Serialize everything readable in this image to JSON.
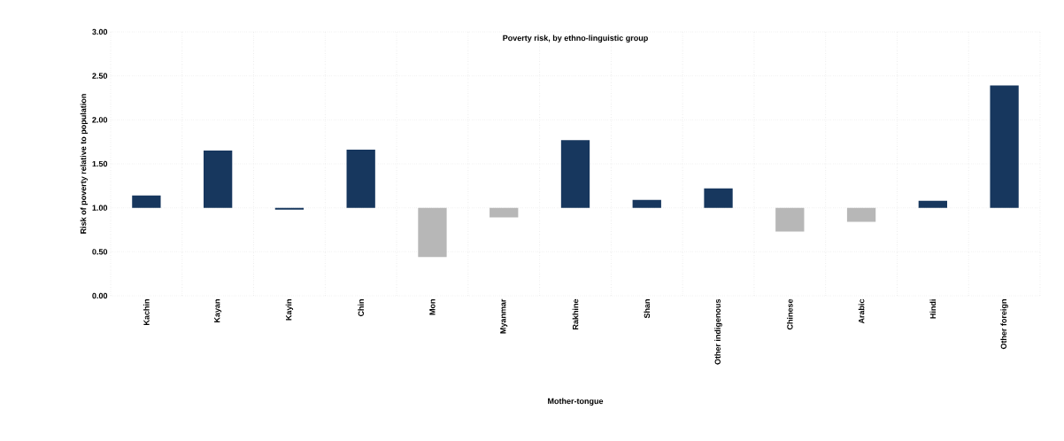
{
  "chart_data": {
    "type": "bar",
    "title": "Poverty risk, by ethno-linguistic group",
    "xlabel": "Mother-tongue",
    "ylabel": "Risk of poverty relative to population",
    "categories": [
      "Kachin",
      "Kayan",
      "Kayin",
      "Chin",
      "Mon",
      "Myanmar",
      "Rakhine",
      "Shan",
      "Other indigenous",
      "Chinese",
      "Arabic",
      "Hindi",
      "Other foreign"
    ],
    "base": [
      1,
      1,
      1,
      1,
      1,
      1,
      1,
      1,
      1,
      1,
      1,
      1,
      1
    ],
    "values": [
      0.14,
      0.65,
      -0.02,
      0.66,
      -0.56,
      -0.11,
      0.77,
      0.09,
      0.22,
      -0.27,
      -0.16,
      0.08,
      1.39
    ],
    "colors": [
      "#17375e",
      "#17375e",
      "#17375e",
      "#17375e",
      "#b7b7b7",
      "#b7b7b7",
      "#17375e",
      "#17375e",
      "#17375e",
      "#b7b7b7",
      "#b7b7b7",
      "#17375e",
      "#17375e"
    ],
    "ylim": [
      0,
      3
    ],
    "yticks": [
      {
        "value": 0,
        "label": "0.00"
      },
      {
        "value": 0.5,
        "label": "0.50"
      },
      {
        "value": 1,
        "label": "1.00"
      },
      {
        "value": 1.5,
        "label": "1.50"
      },
      {
        "value": 2,
        "label": "2.00"
      },
      {
        "value": 2.5,
        "label": "2.50"
      },
      {
        "value": 3,
        "label": "3.00"
      }
    ],
    "grid": true
  }
}
